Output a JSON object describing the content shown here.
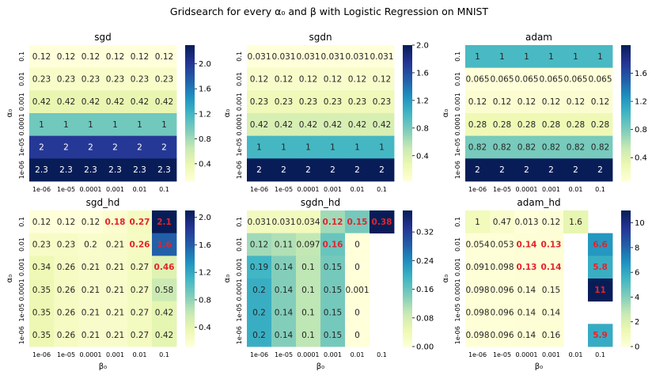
{
  "figure": {
    "suptitle": "Gridsearch for every α₀ and β with Logistic Regression on MNIST"
  },
  "colors": {
    "colormap": [
      "#ffffd9",
      "#edf8b1",
      "#c7e9b4",
      "#7fcdbb",
      "#41b6c4",
      "#1d91c0",
      "#225ea8",
      "#253494",
      "#081d58"
    ],
    "highlight_text": "#e3242b",
    "light_text": "#ffffff",
    "dark_text": "#262626"
  },
  "chart_data": [
    {
      "type": "heatmap",
      "title": "sgd",
      "xlabel": "",
      "ylabel": "α₀",
      "x_tick_labels": [
        "1e-06",
        "1e-05",
        "0.0001",
        "0.001",
        "0.01",
        "0.1"
      ],
      "y_tick_labels": [
        "0.1",
        "0.01",
        "0.001",
        "0.0001",
        "1e-05",
        "1e-06"
      ],
      "cell_labels": [
        [
          "0.12",
          "0.12",
          "0.12",
          "0.12",
          "0.12",
          "0.12"
        ],
        [
          "0.23",
          "0.23",
          "0.23",
          "0.23",
          "0.23",
          "0.23"
        ],
        [
          "0.42",
          "0.42",
          "0.42",
          "0.42",
          "0.42",
          "0.42"
        ],
        [
          "1",
          "1",
          "1",
          "1",
          "1",
          "1"
        ],
        [
          "2",
          "2",
          "2",
          "2",
          "2",
          "2"
        ],
        [
          "2.3",
          "2.3",
          "2.3",
          "2.3",
          "2.3",
          "2.3"
        ]
      ],
      "values": [
        [
          0.12,
          0.12,
          0.12,
          0.12,
          0.12,
          0.12
        ],
        [
          0.23,
          0.23,
          0.23,
          0.23,
          0.23,
          0.23
        ],
        [
          0.42,
          0.42,
          0.42,
          0.42,
          0.42,
          0.42
        ],
        [
          1,
          1,
          1,
          1,
          1,
          1
        ],
        [
          2,
          2,
          2,
          2,
          2,
          2
        ],
        [
          2.3,
          2.3,
          2.3,
          2.3,
          2.3,
          2.3
        ]
      ],
      "vmin": 0.12,
      "vmax": 2.3,
      "colorbar_ticks": [
        0.4,
        0.8,
        1.2,
        1.6,
        2.0
      ],
      "colorbar_tick_labels": [
        "0.4",
        "0.8",
        "1.2",
        "1.6",
        "2.0"
      ],
      "highlight": []
    },
    {
      "type": "heatmap",
      "title": "sgdn",
      "xlabel": "",
      "ylabel": "α₀",
      "x_tick_labels": [
        "1e-06",
        "1e-05",
        "0.0001",
        "0.001",
        "0.01",
        "0.1"
      ],
      "y_tick_labels": [
        "0.1",
        "0.01",
        "0.001",
        "0.0001",
        "1e-05",
        "1e-06"
      ],
      "cell_labels": [
        [
          "0.031",
          "0.031",
          "0.031",
          "0.031",
          "0.031",
          "0.031"
        ],
        [
          "0.12",
          "0.12",
          "0.12",
          "0.12",
          "0.12",
          "0.12"
        ],
        [
          "0.23",
          "0.23",
          "0.23",
          "0.23",
          "0.23",
          "0.23"
        ],
        [
          "0.42",
          "0.42",
          "0.42",
          "0.42",
          "0.42",
          "0.42"
        ],
        [
          "1",
          "1",
          "1",
          "1",
          "1",
          "1"
        ],
        [
          "2",
          "2",
          "2",
          "2",
          "2",
          "2"
        ]
      ],
      "values": [
        [
          0.031,
          0.031,
          0.031,
          0.031,
          0.031,
          0.031
        ],
        [
          0.12,
          0.12,
          0.12,
          0.12,
          0.12,
          0.12
        ],
        [
          0.23,
          0.23,
          0.23,
          0.23,
          0.23,
          0.23
        ],
        [
          0.42,
          0.42,
          0.42,
          0.42,
          0.42,
          0.42
        ],
        [
          1,
          1,
          1,
          1,
          1,
          1
        ],
        [
          2,
          2,
          2,
          2,
          2,
          2
        ]
      ],
      "vmin": 0.031,
      "vmax": 2.0,
      "colorbar_ticks": [
        0.4,
        0.8,
        1.2,
        1.6,
        2.0
      ],
      "colorbar_tick_labels": [
        "0.4",
        "0.8",
        "1.2",
        "1.6",
        "2.0"
      ],
      "highlight": []
    },
    {
      "type": "heatmap",
      "title": "adam",
      "xlabel": "",
      "ylabel": "α₀",
      "x_tick_labels": [
        "1e-06",
        "1e-05",
        "0.0001",
        "0.001",
        "0.01",
        "0.1"
      ],
      "y_tick_labels": [
        "0.1",
        "0.01",
        "0.001",
        "0.0001",
        "1e-05",
        "1e-06"
      ],
      "cell_labels": [
        [
          "1",
          "1",
          "1",
          "1",
          "1",
          "1"
        ],
        [
          "0.065",
          "0.065",
          "0.065",
          "0.065",
          "0.065",
          "0.065"
        ],
        [
          "0.12",
          "0.12",
          "0.12",
          "0.12",
          "0.12",
          "0.12"
        ],
        [
          "0.28",
          "0.28",
          "0.28",
          "0.28",
          "0.28",
          "0.28"
        ],
        [
          "0.82",
          "0.82",
          "0.82",
          "0.82",
          "0.82",
          "0.82"
        ],
        [
          "2",
          "2",
          "2",
          "2",
          "2",
          "2"
        ]
      ],
      "values": [
        [
          1,
          1,
          1,
          1,
          1,
          1
        ],
        [
          0.065,
          0.065,
          0.065,
          0.065,
          0.065,
          0.065
        ],
        [
          0.12,
          0.12,
          0.12,
          0.12,
          0.12,
          0.12
        ],
        [
          0.28,
          0.28,
          0.28,
          0.28,
          0.28,
          0.28
        ],
        [
          0.82,
          0.82,
          0.82,
          0.82,
          0.82,
          0.82
        ],
        [
          2,
          2,
          2,
          2,
          2,
          2
        ]
      ],
      "vmin": 0.065,
      "vmax": 2.0,
      "colorbar_ticks": [
        0.4,
        0.8,
        1.2,
        1.6
      ],
      "colorbar_tick_labels": [
        "0.4",
        "0.8",
        "1.2",
        "1.6"
      ],
      "highlight": []
    },
    {
      "type": "heatmap",
      "title": "sgd_hd",
      "xlabel": "β₀",
      "ylabel": "α₀",
      "x_tick_labels": [
        "1e-06",
        "1e-05",
        "0.0001",
        "0.001",
        "0.01",
        "0.1"
      ],
      "y_tick_labels": [
        "0.1",
        "0.01",
        "0.001",
        "0.0001",
        "1e-05",
        "1e-06"
      ],
      "cell_labels": [
        [
          "0.12",
          "0.12",
          "0.12",
          "0.18",
          "0.27",
          "2.1"
        ],
        [
          "0.23",
          "0.23",
          "0.2",
          "0.21",
          "0.26",
          "1.6"
        ],
        [
          "0.34",
          "0.26",
          "0.21",
          "0.21",
          "0.27",
          "0.46"
        ],
        [
          "0.35",
          "0.26",
          "0.21",
          "0.21",
          "0.27",
          "0.58"
        ],
        [
          "0.35",
          "0.26",
          "0.21",
          "0.21",
          "0.27",
          "0.42"
        ],
        [
          "0.35",
          "0.26",
          "0.21",
          "0.21",
          "0.27",
          "0.42"
        ]
      ],
      "values": [
        [
          0.12,
          0.12,
          0.12,
          0.18,
          0.27,
          2.1
        ],
        [
          0.23,
          0.23,
          0.2,
          0.21,
          0.26,
          1.6
        ],
        [
          0.34,
          0.26,
          0.21,
          0.21,
          0.27,
          0.46
        ],
        [
          0.35,
          0.26,
          0.21,
          0.21,
          0.27,
          0.58
        ],
        [
          0.35,
          0.26,
          0.21,
          0.21,
          0.27,
          0.42
        ],
        [
          0.35,
          0.26,
          0.21,
          0.21,
          0.27,
          0.42
        ]
      ],
      "vmin": 0.12,
      "vmax": 2.1,
      "colorbar_ticks": [
        0.4,
        0.8,
        1.2,
        1.6,
        2.0
      ],
      "colorbar_tick_labels": [
        "0.4",
        "0.8",
        "1.2",
        "1.6",
        "2.0"
      ],
      "highlight": [
        [
          0,
          3
        ],
        [
          0,
          4
        ],
        [
          0,
          5
        ],
        [
          1,
          4
        ],
        [
          1,
          5
        ],
        [
          2,
          5
        ]
      ]
    },
    {
      "type": "heatmap",
      "title": "sgdn_hd",
      "xlabel": "β₀",
      "ylabel": "α₀",
      "x_tick_labels": [
        "1e-06",
        "1e-05",
        "0.0001",
        "0.001",
        "0.01",
        "0.1"
      ],
      "y_tick_labels": [
        "0.1",
        "0.01",
        "0.001",
        "0.0001",
        "1e-05",
        "1e-06"
      ],
      "cell_labels": [
        [
          "0.031",
          "0.031",
          "0.034",
          "0.12",
          "0.15",
          "0.38"
        ],
        [
          "0.12",
          "0.11",
          "0.097",
          "0.16",
          "0",
          ""
        ],
        [
          "0.19",
          "0.14",
          "0.1",
          "0.15",
          "0",
          ""
        ],
        [
          "0.2",
          "0.14",
          "0.1",
          "0.15",
          "0.001",
          ""
        ],
        [
          "0.2",
          "0.14",
          "0.1",
          "0.15",
          "0",
          ""
        ],
        [
          "0.2",
          "0.14",
          "0.1",
          "0.15",
          "0",
          ""
        ]
      ],
      "values": [
        [
          0.031,
          0.031,
          0.034,
          0.12,
          0.15,
          0.38
        ],
        [
          0.12,
          0.11,
          0.097,
          0.16,
          0,
          null
        ],
        [
          0.19,
          0.14,
          0.1,
          0.15,
          0,
          null
        ],
        [
          0.2,
          0.14,
          0.1,
          0.15,
          0.001,
          null
        ],
        [
          0.2,
          0.14,
          0.1,
          0.15,
          0,
          null
        ],
        [
          0.2,
          0.14,
          0.1,
          0.15,
          0,
          null
        ]
      ],
      "vmin": 0.0,
      "vmax": 0.38,
      "colorbar_ticks": [
        0.0,
        0.08,
        0.16,
        0.24,
        0.32
      ],
      "colorbar_tick_labels": [
        "0.00",
        "0.08",
        "0.16",
        "0.24",
        "0.32"
      ],
      "highlight": [
        [
          0,
          3
        ],
        [
          0,
          4
        ],
        [
          0,
          5
        ],
        [
          1,
          3
        ]
      ]
    },
    {
      "type": "heatmap",
      "title": "adam_hd",
      "xlabel": "β₀",
      "ylabel": "α₀",
      "x_tick_labels": [
        "1e-06",
        "1e-05",
        "0.0001",
        "0.001",
        "0.01",
        "0.1"
      ],
      "y_tick_labels": [
        "0.1",
        "0.01",
        "0.001",
        "0.0001",
        "1e-05",
        "1e-06"
      ],
      "cell_labels": [
        [
          "1",
          "0.47",
          "0.013",
          "0.12",
          "1.6",
          ""
        ],
        [
          "0.054",
          "0.053",
          "0.14",
          "0.13",
          "",
          "6.6"
        ],
        [
          "0.091",
          "0.098",
          "0.13",
          "0.14",
          "",
          "5.8"
        ],
        [
          "0.098",
          "0.096",
          "0.14",
          "0.15",
          "",
          "11"
        ],
        [
          "0.098",
          "0.096",
          "0.14",
          "0.14",
          "",
          ""
        ],
        [
          "0.098",
          "0.096",
          "0.14",
          "0.16",
          "",
          "5.9"
        ]
      ],
      "values": [
        [
          1,
          0.47,
          0.013,
          0.12,
          1.6,
          null
        ],
        [
          0.054,
          0.053,
          0.14,
          0.13,
          null,
          6.6
        ],
        [
          0.091,
          0.098,
          0.13,
          0.14,
          null,
          5.8
        ],
        [
          0.098,
          0.096,
          0.14,
          0.15,
          null,
          11
        ],
        [
          0.098,
          0.096,
          0.14,
          0.14,
          null,
          null
        ],
        [
          0.098,
          0.096,
          0.14,
          0.16,
          null,
          5.9
        ]
      ],
      "vmin": 0.0,
      "vmax": 11,
      "colorbar_ticks": [
        0,
        2,
        4,
        6,
        8,
        10
      ],
      "colorbar_tick_labels": [
        "0",
        "2",
        "4",
        "6",
        "8",
        "10"
      ],
      "highlight": [
        [
          1,
          2
        ],
        [
          1,
          3
        ],
        [
          1,
          5
        ],
        [
          2,
          2
        ],
        [
          2,
          3
        ],
        [
          2,
          5
        ],
        [
          3,
          5
        ],
        [
          5,
          5
        ]
      ]
    }
  ]
}
